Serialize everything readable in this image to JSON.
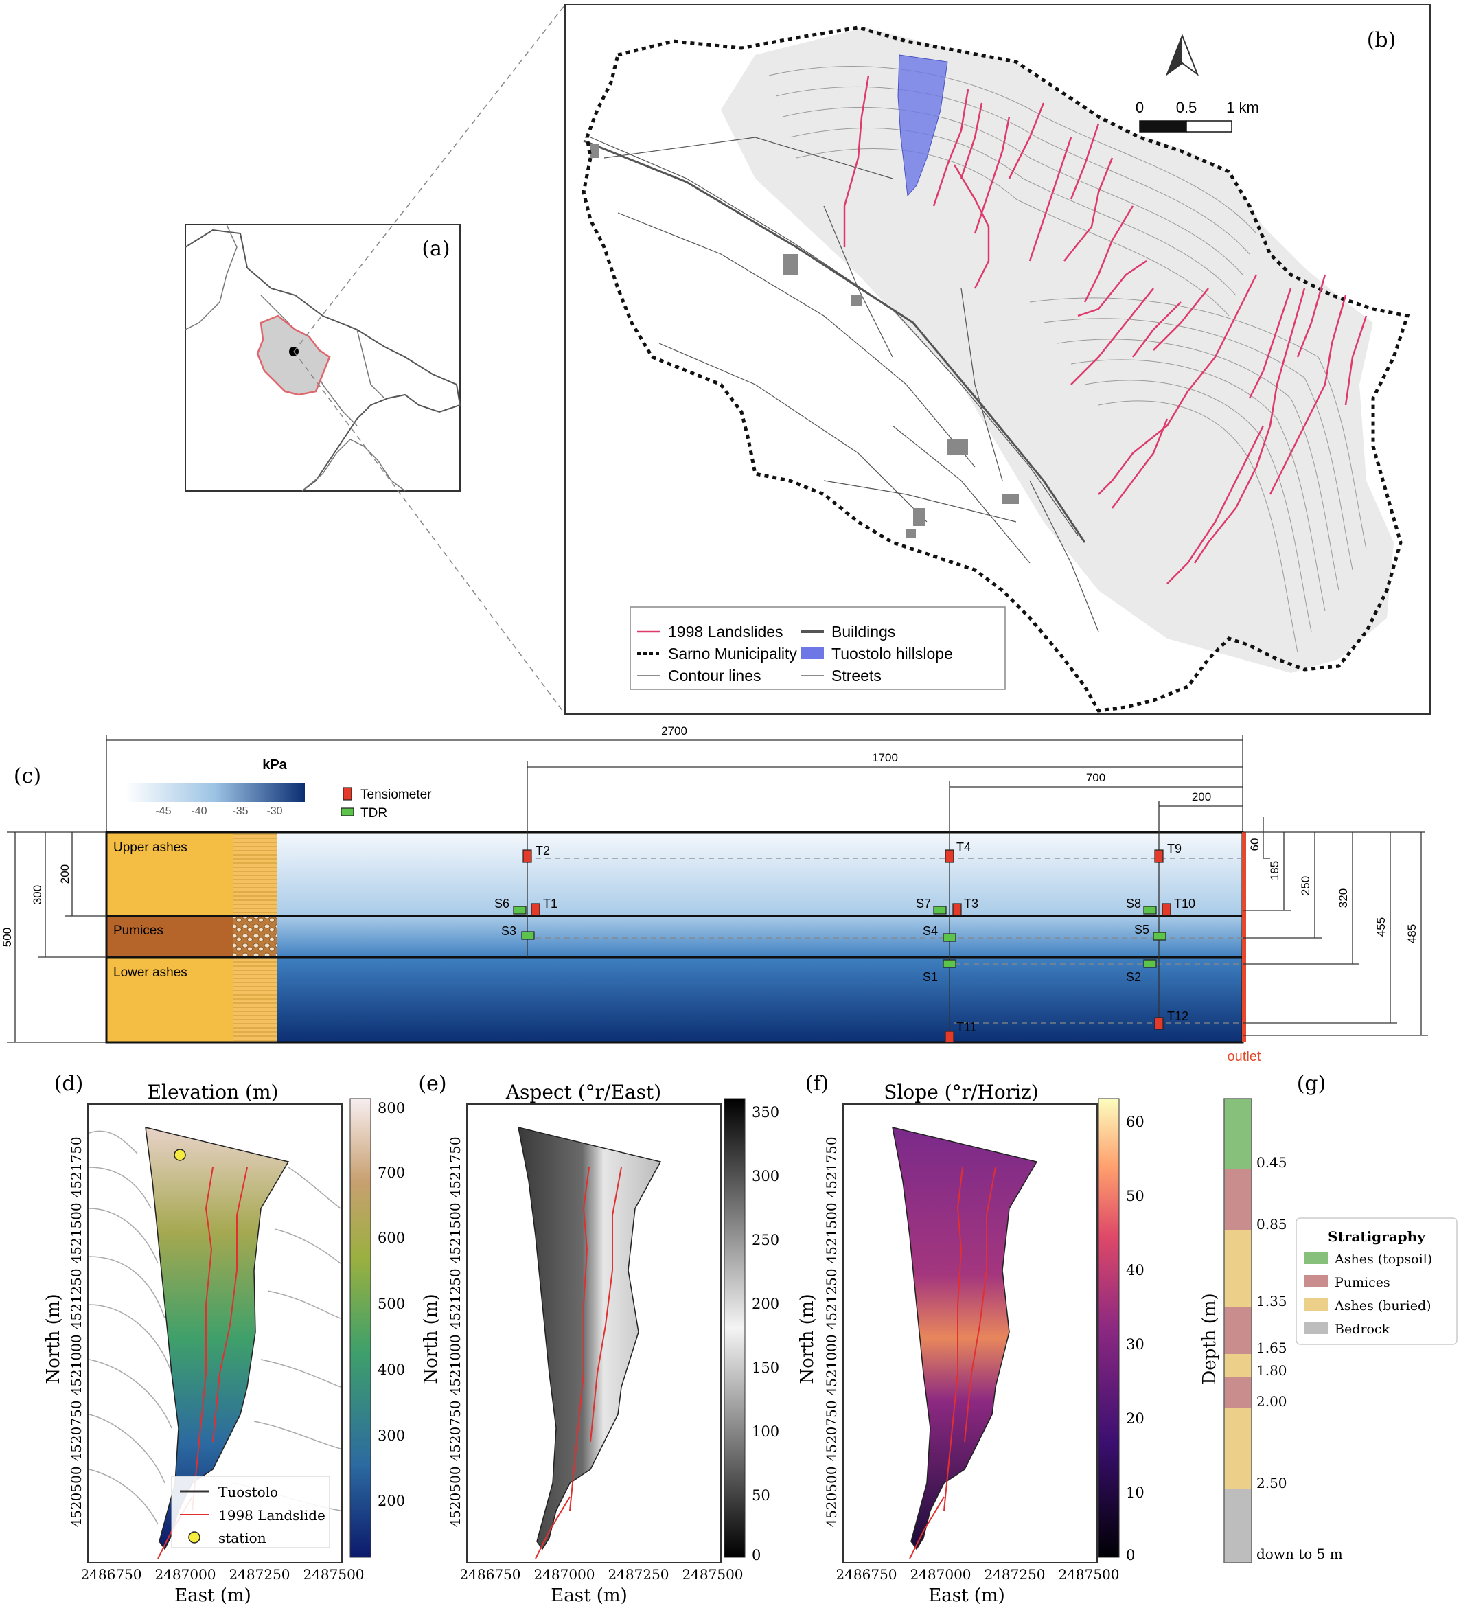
{
  "panel_labels": {
    "a": "(a)",
    "b": "(b)",
    "c": "(c)",
    "d": "(d)",
    "e": "(e)",
    "f": "(f)",
    "g": "(g)"
  },
  "map_b": {
    "scale": {
      "zero": "0",
      "half": "0.5",
      "one": "1 km"
    },
    "legend": [
      "1998 Landslides",
      "Buildings",
      "Sarno Municipality",
      "Tuostolo hillslope",
      "Contour lines",
      "Streets"
    ]
  },
  "section_c": {
    "colorbar": {
      "title": "kPa",
      "ticks": [
        "-45",
        "-40",
        "-35",
        "-30"
      ]
    },
    "legend": {
      "tensiometer": "Tensiometer",
      "tdr": "TDR"
    },
    "horizontal_dims": [
      "2700",
      "1700",
      "700",
      "200"
    ],
    "layers": [
      "Upper ashes",
      "Pumices",
      "Lower ashes"
    ],
    "left_dims": [
      "500",
      "300",
      "200"
    ],
    "right_dims": [
      "60",
      "185",
      "250",
      "320",
      "455",
      "485"
    ],
    "sensors": {
      "T2": "T2",
      "T1": "T1",
      "S6": "S6",
      "S3": "S3",
      "T4": "T4",
      "T3": "T3",
      "S7": "S7",
      "S4": "S4",
      "S1": "S1",
      "T11": "T11",
      "T9": "T9",
      "T10": "T10",
      "S8": "S8",
      "S5": "S5",
      "S2": "S2",
      "T12": "T12"
    },
    "outlet": "outlet"
  },
  "panel_d": {
    "title": "Elevation (m)",
    "xlabel": "East (m)",
    "ylabel": "North (m)",
    "xticks": [
      "2486750",
      "2487000",
      "2487250",
      "2487500"
    ],
    "yticks": [
      "4521750",
      "4521500",
      "4521250",
      "4521000",
      "4520750",
      "4520500"
    ],
    "cbar_ticks": [
      "800",
      "700",
      "600",
      "500",
      "400",
      "300",
      "200"
    ],
    "legend": [
      "Tuostolo",
      "1998 Landslide",
      "station"
    ]
  },
  "panel_e": {
    "title": "Aspect (°r/East)",
    "xlabel": "East (m)",
    "ylabel": "North (m)",
    "xticks": [
      "2486750",
      "2487000",
      "2487250",
      "2487500"
    ],
    "yticks": [
      "4521750",
      "4521500",
      "4521250",
      "4521000",
      "4520750",
      "4520500"
    ],
    "cbar_ticks": [
      "350",
      "300",
      "250",
      "200",
      "150",
      "100",
      "50",
      "0"
    ]
  },
  "panel_f": {
    "title": "Slope (°r/Horiz)",
    "xlabel": "East (m)",
    "ylabel": "North (m)",
    "xticks": [
      "2486750",
      "2487000",
      "2487250",
      "2487500"
    ],
    "yticks": [
      "4521750",
      "4521500",
      "4521250",
      "4521000",
      "4520750",
      "4520500"
    ],
    "cbar_ticks": [
      "60",
      "50",
      "40",
      "30",
      "20",
      "10",
      "0"
    ]
  },
  "panel_g": {
    "ylabel": "Depth (m)",
    "depths": [
      "0.45",
      "0.85",
      "1.35",
      "1.65",
      "1.80",
      "2.00",
      "2.50",
      "down to 5 m"
    ],
    "legend_title": "Stratigraphy",
    "legend": [
      "Ashes (topsoil)",
      "Pumices",
      "Ashes (buried)",
      "Bedrock"
    ]
  }
}
